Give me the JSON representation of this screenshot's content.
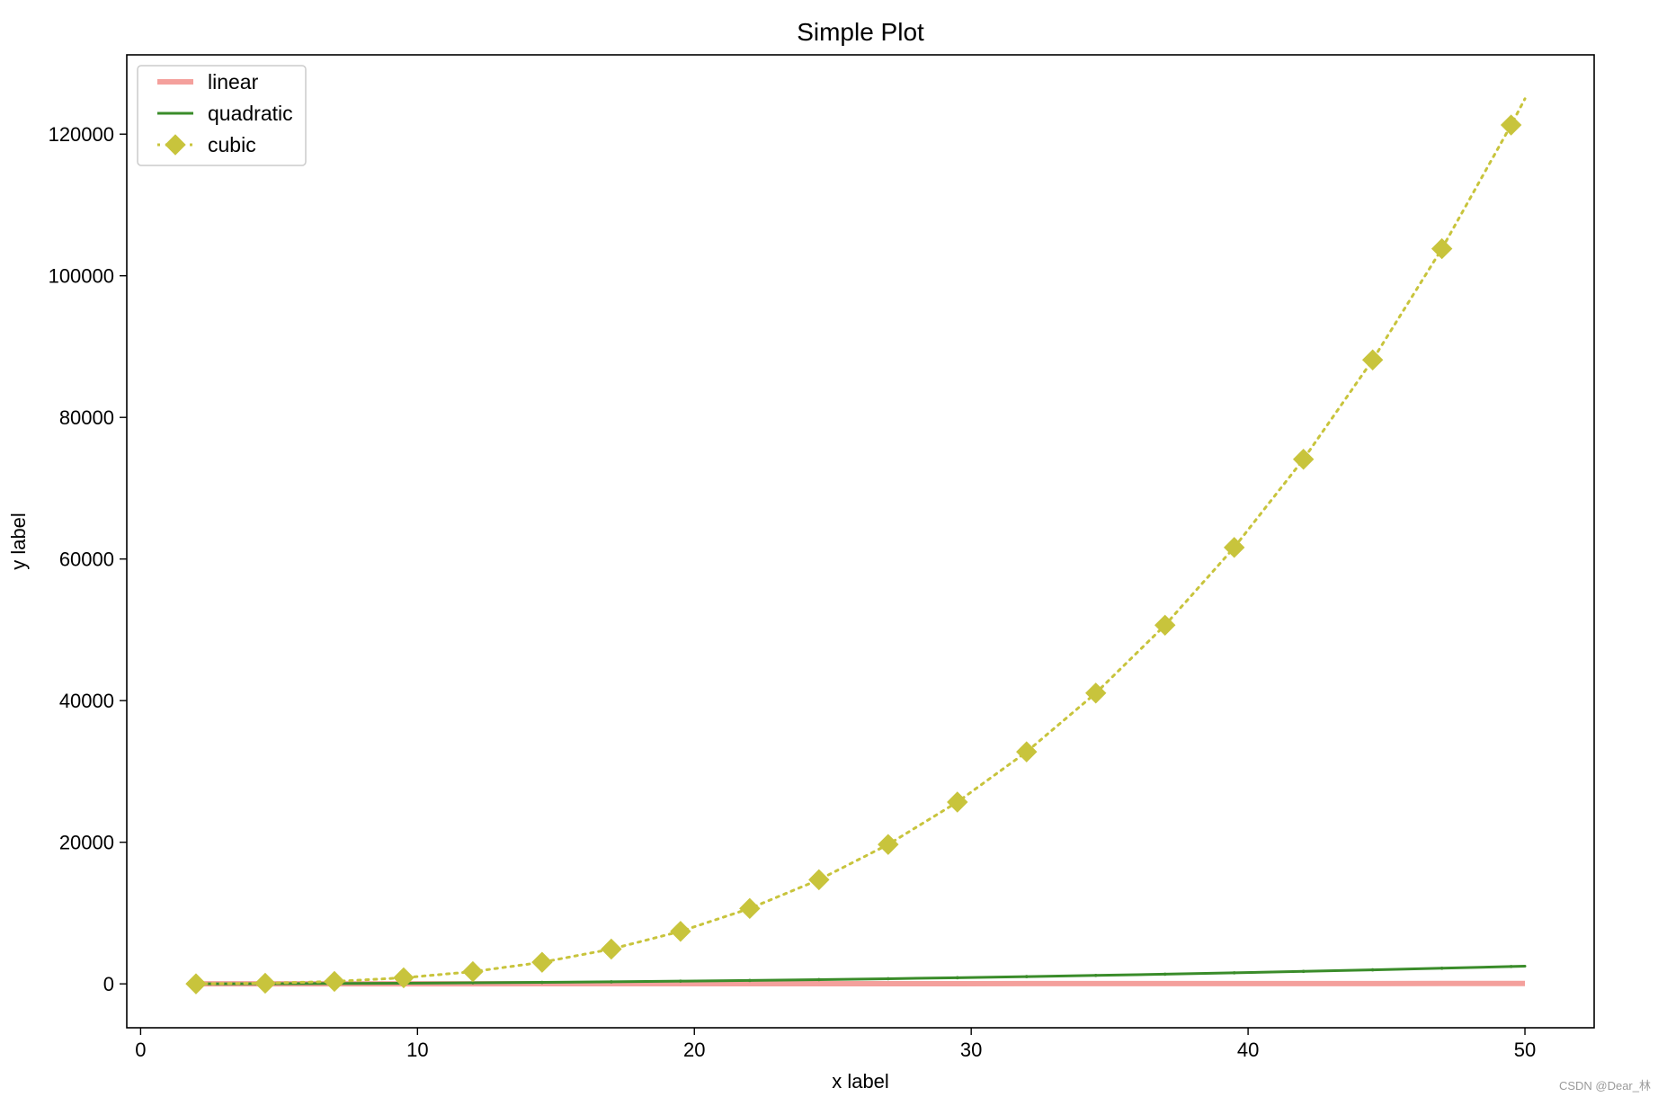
{
  "chart_data": {
    "type": "line",
    "title": "Simple Plot",
    "xlabel": "x label",
    "ylabel": "y label",
    "xlim": [
      -0.5,
      52.5
    ],
    "ylim": [
      -6200,
      131200
    ],
    "xticks": [
      0,
      10,
      20,
      30,
      40,
      50
    ],
    "yticks": [
      0,
      20000,
      40000,
      60000,
      80000,
      100000,
      120000
    ],
    "grid": false,
    "legend_position": "top-left",
    "x": [
      2.0,
      4.5,
      7.0,
      9.5,
      12.0,
      14.5,
      17.0,
      19.5,
      22.0,
      24.5,
      27.0,
      29.5,
      32.0,
      34.5,
      37.0,
      39.5,
      42.0,
      44.5,
      47.0,
      49.5,
      50.0
    ],
    "series": [
      {
        "name": "linear",
        "color": "#f4a09c",
        "style": "solid-thick",
        "marker": "none",
        "values": [
          2.0,
          4.5,
          7.0,
          9.5,
          12.0,
          14.5,
          17.0,
          19.5,
          22.0,
          24.5,
          27.0,
          29.5,
          32.0,
          34.5,
          37.0,
          39.5,
          42.0,
          44.5,
          47.0,
          49.5,
          50.0
        ]
      },
      {
        "name": "quadratic",
        "color": "#3a8c2a",
        "style": "solid",
        "marker": "point",
        "values": [
          4,
          20.25,
          49,
          90.25,
          144,
          210.25,
          289,
          380.25,
          484,
          600.25,
          729,
          870.25,
          1024,
          1190.25,
          1369,
          1560.25,
          1764,
          1980.25,
          2209,
          2450.25,
          2500
        ]
      },
      {
        "name": "cubic",
        "color": "#c8c43c",
        "style": "dotted",
        "marker": "diamond",
        "values": [
          8,
          91.1,
          343,
          857.4,
          1728,
          3048.6,
          4913,
          7414.9,
          10648,
          14706.1,
          19683,
          25672.4,
          32768,
          41063.6,
          50653,
          61630.9,
          74088,
          88121.1,
          103823,
          121287.4,
          125000
        ]
      }
    ]
  },
  "watermark": "CSDN @Dear_林"
}
